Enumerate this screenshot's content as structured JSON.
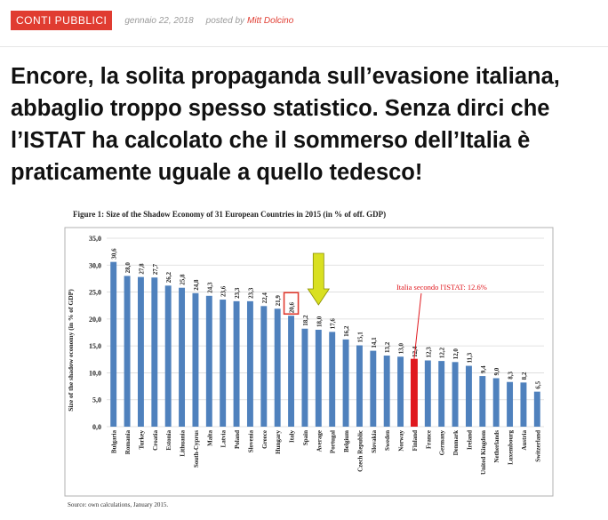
{
  "meta": {
    "category": "CONTI PUBBLICI",
    "date": "gennaio 22, 2018",
    "posted_by": "posted by",
    "author": "Mitt Dolcino"
  },
  "article": {
    "title": "Encore, la solita propaganda sull’evasione italiana, abbaglio troppo spesso statistico. Senza dirci che l’ISTAT ha calcolato che il sommerso dell’Italia è praticamente uguale a quello tedesco!"
  },
  "figure": {
    "caption": "Figure 1: Size of the Shadow Economy of 31 European Countries in 2015 (in % of off. GDP)",
    "source": "Source: own calculations, January 2015."
  },
  "chart_data": {
    "type": "bar",
    "title": "Figure 1: Size of the Shadow Economy of 31 European Countries in 2015 (in % of off. GDP)",
    "ylabel": "Size of the shadow economy (in % of GDP)",
    "xlabel": "",
    "ylim": [
      0,
      35
    ],
    "yticks": [
      "0,0",
      "5,0",
      "10,0",
      "15,0",
      "20,0",
      "25,0",
      "30,0",
      "35,0"
    ],
    "grid": true,
    "categories": [
      "Bulgaria",
      "Romania",
      "Turkey",
      "Croatia",
      "Estonia",
      "Lithuania",
      "South-Cyprus",
      "Malta",
      "Latvia",
      "Poland",
      "Slovenia",
      "Greece",
      "Hungary",
      "Italy",
      "Spain",
      "Average",
      "Portugal",
      "Belgium",
      "Czech Republic",
      "Slovakia",
      "Sweden",
      "Norway",
      "Finland",
      "France",
      "Germany",
      "Denmark",
      "Ireland",
      "United Kingdom",
      "Netherlands",
      "Luxembourg",
      "Austria",
      "Switzerland"
    ],
    "values": [
      30.6,
      28.0,
      27.8,
      27.7,
      26.2,
      25.8,
      24.8,
      24.3,
      23.6,
      23.3,
      23.3,
      22.4,
      21.9,
      20.6,
      18.2,
      18.0,
      17.6,
      16.2,
      15.1,
      14.1,
      13.2,
      13.0,
      12.4,
      12.3,
      12.2,
      12.0,
      11.3,
      9.4,
      9.0,
      8.3,
      8.2,
      6.5
    ],
    "value_labels": [
      "30,6",
      "28,0",
      "27,8",
      "27,7",
      "26,2",
      "25,8",
      "24,8",
      "24,3",
      "23,6",
      "23,3",
      "23,3",
      "22,4",
      "21,9",
      "20,6",
      "18,2",
      "18,0",
      "17,6",
      "16,2",
      "15,1",
      "14,1",
      "13,2",
      "13,0",
      "12,4",
      "12,3",
      "12,2",
      "12,0",
      "11,3",
      "9,4",
      "9,0",
      "8,3",
      "8,2",
      "6,5"
    ],
    "bar_color": "#4f81bd",
    "highlight_box_category": "Italy",
    "highlight_box_color": "#e03c31",
    "arrow_category": "Average",
    "arrow_color": "#d9e021",
    "istat_annotation": {
      "text": "Italia secondo l'ISTAT: 12.6%",
      "value": 12.6,
      "category": "Finland",
      "color": "#e0181e"
    }
  }
}
